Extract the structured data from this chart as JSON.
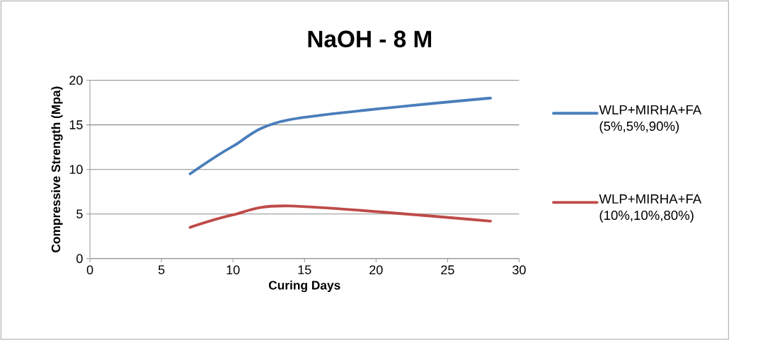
{
  "chart_data": {
    "type": "line",
    "title": "NaOH - 8 M",
    "xlabel": "Curing Days",
    "ylabel": "Compressive Strength (Mpa)",
    "x": [
      7,
      10,
      14,
      28
    ],
    "series": [
      {
        "name": "WLP+MIRHA+FA (5%,5%,90%)",
        "color": "#4a7ebb",
        "values": [
          9.5,
          12.6,
          15.6,
          18
        ]
      },
      {
        "name": "WLP+MIRHA+FA (10%,10%,80%)",
        "color": "#be4b48",
        "values": [
          3.5,
          4.9,
          5.9,
          4.2
        ]
      }
    ],
    "xlim": [
      0,
      30
    ],
    "xticks": [
      0,
      5,
      10,
      15,
      20,
      25,
      30
    ],
    "ylim": [
      0,
      20
    ],
    "yticks": [
      0,
      5,
      10,
      15,
      20
    ],
    "grid": "y",
    "legend": "right",
    "marker": "none",
    "line_style": "solid"
  }
}
